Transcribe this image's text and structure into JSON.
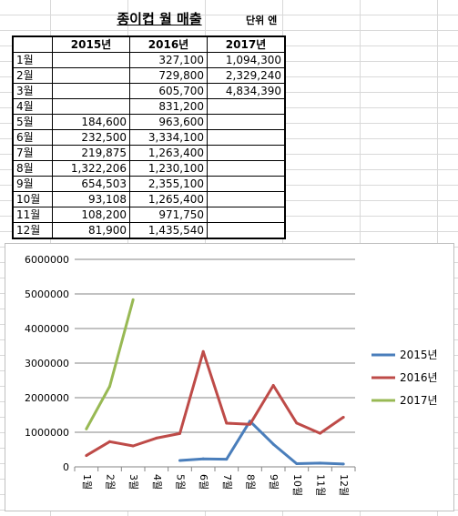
{
  "sheet": {
    "title": "종이컵 월 매출",
    "unit": "단위 엔",
    "header": [
      "",
      "2015년",
      "2016년",
      "2017년"
    ],
    "rows": [
      [
        "1월",
        "",
        "327,100",
        "1,094,300"
      ],
      [
        "2월",
        "",
        "729,800",
        "2,329,240"
      ],
      [
        "3월",
        "",
        "605,700",
        "4,834,390"
      ],
      [
        "4월",
        "",
        "831,200",
        ""
      ],
      [
        "5월",
        "184,600",
        "963,600",
        ""
      ],
      [
        "6월",
        "232,500",
        "3,334,100",
        ""
      ],
      [
        "7월",
        "219,875",
        "1,263,400",
        ""
      ],
      [
        "8월",
        "1,322,206",
        "1,230,100",
        ""
      ],
      [
        "9월",
        "654,503",
        "2,355,100",
        ""
      ],
      [
        "10월",
        "93,108",
        "1,265,400",
        ""
      ],
      [
        "11월",
        "108,200",
        "971,750",
        ""
      ],
      [
        "12월",
        "81,900",
        "1,435,540",
        ""
      ]
    ]
  },
  "chart_data": {
    "type": "line",
    "categories": [
      "1월",
      "2월",
      "3월",
      "4월",
      "5월",
      "6월",
      "7월",
      "8월",
      "9월",
      "10월",
      "11월",
      "12월"
    ],
    "series": [
      {
        "name": "2015년",
        "color": "#4a7ebb",
        "values": [
          null,
          null,
          null,
          null,
          184600,
          232500,
          219875,
          1322206,
          654503,
          93108,
          108200,
          81900
        ]
      },
      {
        "name": "2016년",
        "color": "#be4b48",
        "values": [
          327100,
          729800,
          605700,
          831200,
          963600,
          3334100,
          1263400,
          1230100,
          2355100,
          1265400,
          971750,
          1435540
        ]
      },
      {
        "name": "2017년",
        "color": "#98b954",
        "values": [
          1094300,
          2329240,
          4834390,
          null,
          null,
          null,
          null,
          null,
          null,
          null,
          null,
          null
        ]
      }
    ],
    "yticks": [
      "0",
      "1000000",
      "2000000",
      "3000000",
      "4000000",
      "5000000",
      "6000000"
    ],
    "ylim": [
      0,
      6000000
    ],
    "grid": true,
    "legend": "right"
  }
}
